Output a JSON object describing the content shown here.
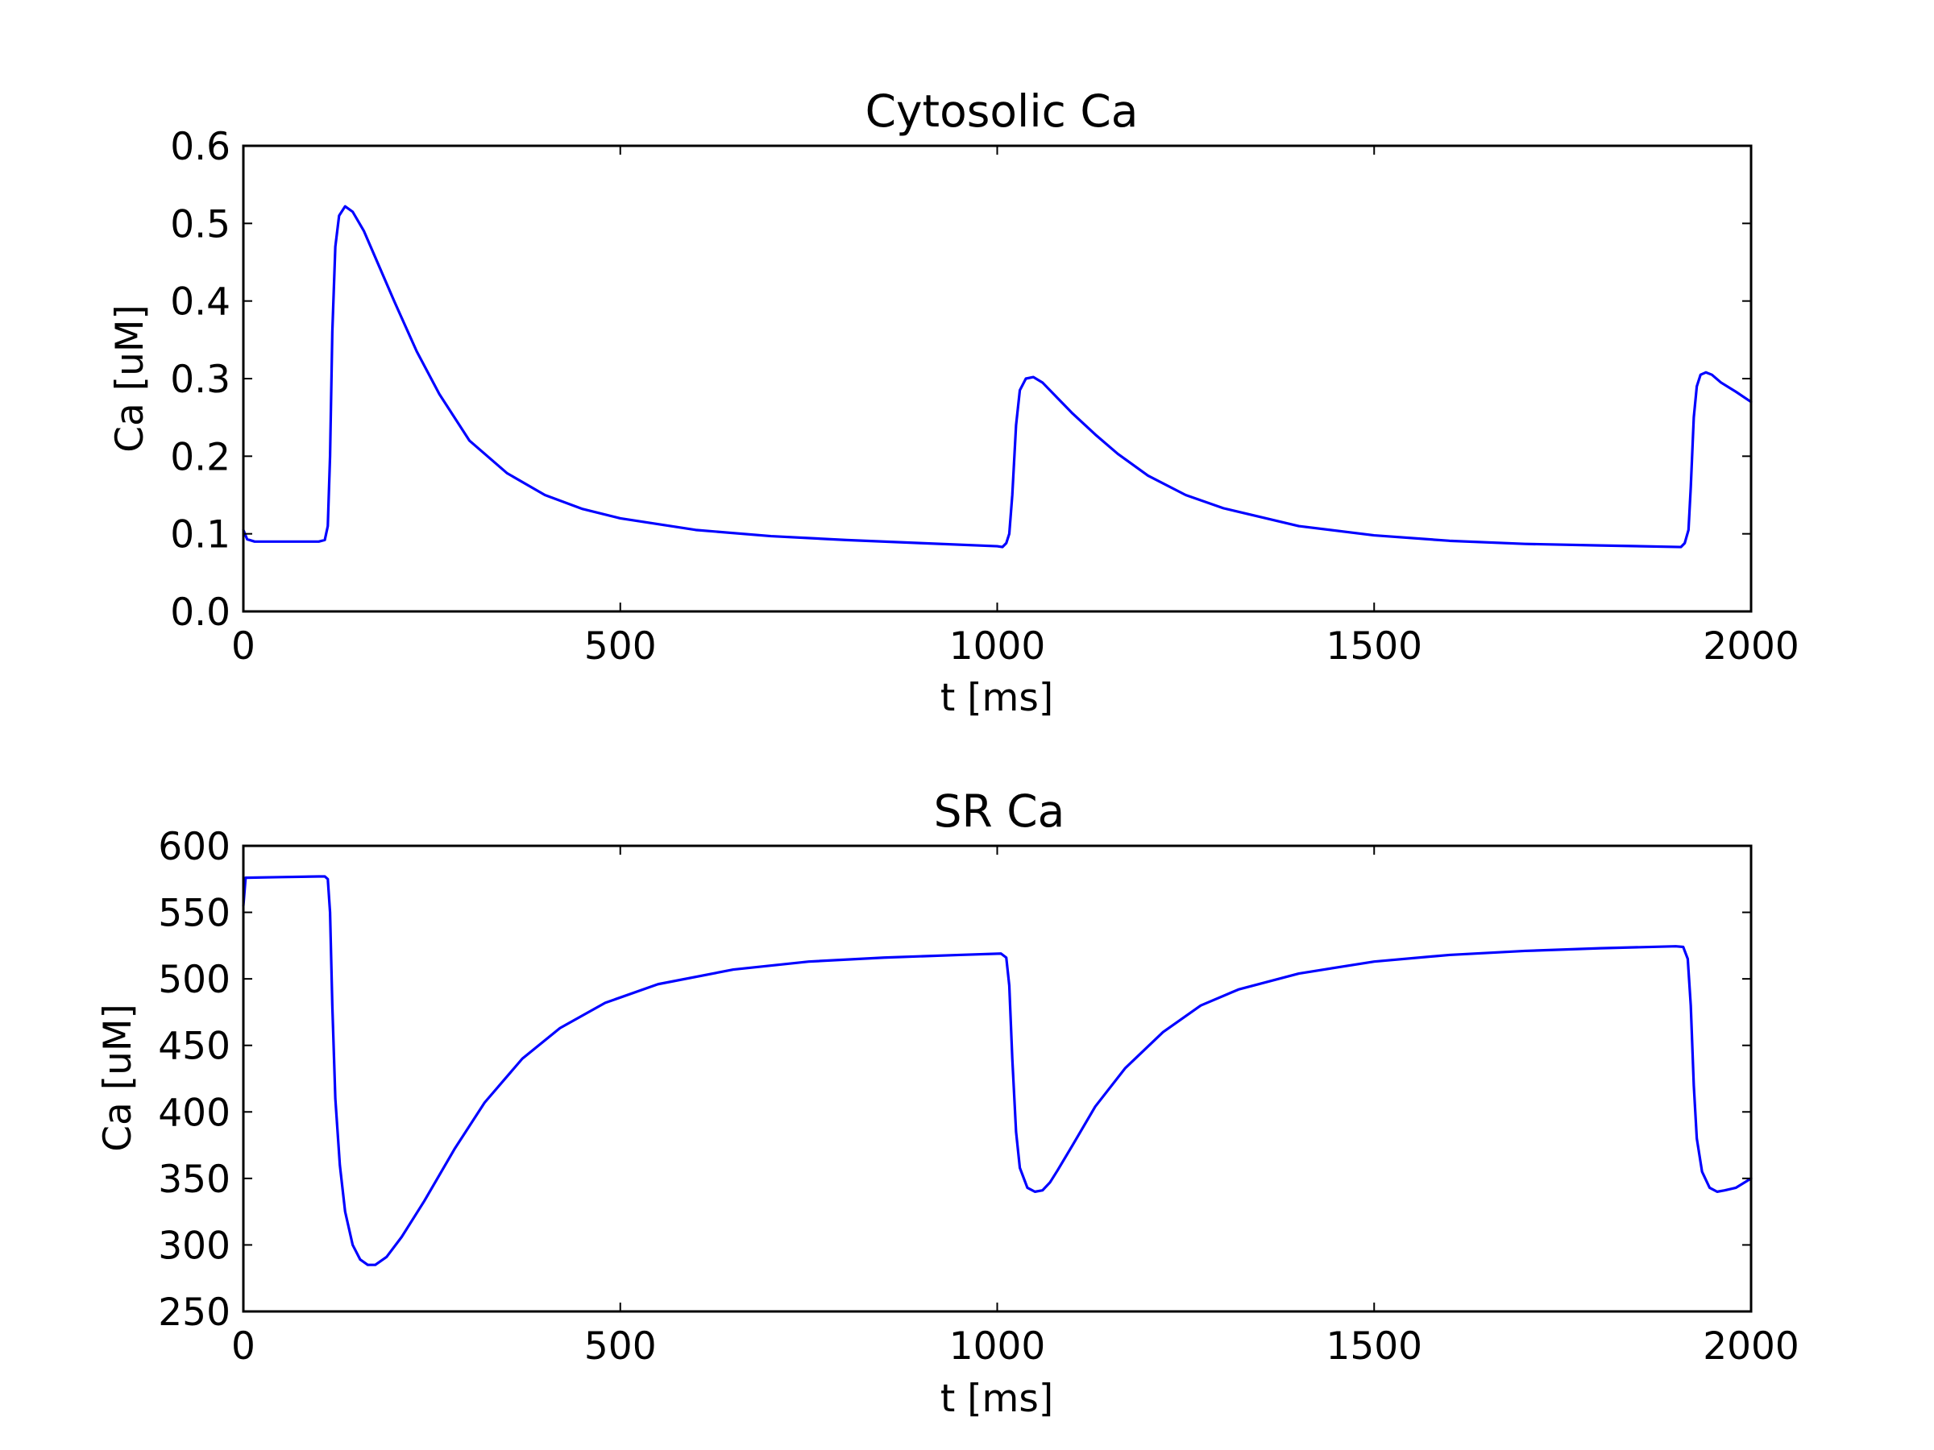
{
  "chart_data": [
    {
      "type": "line",
      "title": "Cytosolic Ca",
      "xlabel": "t [ms]",
      "ylabel": "Ca [uM]",
      "xlim": [
        0,
        2000
      ],
      "ylim": [
        0.0,
        0.6
      ],
      "xticks": [
        0,
        500,
        1000,
        1500,
        2000
      ],
      "xtick_labels": [
        "0",
        "500",
        "1000",
        "1500",
        "2000"
      ],
      "yticks": [
        0.0,
        0.1,
        0.2,
        0.3,
        0.4,
        0.5,
        0.6
      ],
      "ytick_labels": [
        "0.0",
        "0.1",
        "0.2",
        "0.3",
        "0.4",
        "0.5",
        "0.6"
      ],
      "grid": false,
      "series": [
        {
          "color": "#0000ff",
          "x": [
            0,
            5,
            15,
            40,
            100,
            108,
            112,
            115,
            118,
            122,
            127,
            135,
            145,
            160,
            180,
            200,
            230,
            260,
            300,
            350,
            400,
            450,
            500,
            600,
            700,
            800,
            900,
            1000,
            1007,
            1012,
            1016,
            1020,
            1025,
            1030,
            1038,
            1048,
            1060,
            1080,
            1100,
            1130,
            1160,
            1200,
            1250,
            1300,
            1400,
            1500,
            1600,
            1700,
            1800,
            1907,
            1912,
            1917,
            1920,
            1924,
            1928,
            1933,
            1940,
            1948,
            1960,
            1980,
            2000
          ],
          "y": [
            0.105,
            0.093,
            0.09,
            0.09,
            0.09,
            0.092,
            0.11,
            0.2,
            0.36,
            0.47,
            0.51,
            0.522,
            0.515,
            0.49,
            0.445,
            0.4,
            0.335,
            0.28,
            0.22,
            0.178,
            0.15,
            0.132,
            0.12,
            0.105,
            0.097,
            0.092,
            0.088,
            0.084,
            0.083,
            0.088,
            0.1,
            0.15,
            0.24,
            0.285,
            0.3,
            0.302,
            0.295,
            0.275,
            0.255,
            0.228,
            0.203,
            0.175,
            0.15,
            0.133,
            0.11,
            0.098,
            0.091,
            0.087,
            0.085,
            0.083,
            0.088,
            0.105,
            0.16,
            0.25,
            0.29,
            0.305,
            0.308,
            0.305,
            0.295,
            0.283,
            0.27
          ]
        }
      ]
    },
    {
      "type": "line",
      "title": "SR Ca",
      "xlabel": "t [ms]",
      "ylabel": "Ca [uM]",
      "xlim": [
        0,
        2000
      ],
      "ylim": [
        250,
        600
      ],
      "xticks": [
        0,
        500,
        1000,
        1500,
        2000
      ],
      "xtick_labels": [
        "0",
        "500",
        "1000",
        "1500",
        "2000"
      ],
      "yticks": [
        250,
        300,
        350,
        400,
        450,
        500,
        550,
        600
      ],
      "ytick_labels": [
        "250",
        "300",
        "350",
        "400",
        "450",
        "500",
        "550",
        "600"
      ],
      "grid": false,
      "series": [
        {
          "color": "#0000ff",
          "x": [
            0,
            3,
            50,
            100,
            108,
            112,
            115,
            118,
            122,
            128,
            135,
            145,
            155,
            165,
            175,
            190,
            210,
            240,
            280,
            320,
            370,
            420,
            480,
            550,
            650,
            750,
            850,
            950,
            1005,
            1012,
            1016,
            1020,
            1025,
            1030,
            1040,
            1050,
            1060,
            1070,
            1080,
            1100,
            1130,
            1170,
            1220,
            1270,
            1320,
            1400,
            1500,
            1600,
            1700,
            1800,
            1900,
            1910,
            1916,
            1920,
            1924,
            1928,
            1935,
            1945,
            1955,
            1965,
            1980,
            2000
          ],
          "y": [
            555,
            576,
            576.5,
            577,
            577,
            575,
            550,
            480,
            410,
            360,
            325,
            300,
            289,
            285,
            285,
            291,
            306,
            333,
            372,
            407,
            440,
            463,
            482,
            496,
            507,
            513,
            516,
            518,
            519,
            516,
            495,
            440,
            385,
            358,
            343,
            340,
            341,
            347,
            356,
            375,
            404,
            433,
            460,
            480,
            492,
            504,
            513,
            518,
            521,
            523,
            524.5,
            524,
            515,
            480,
            420,
            380,
            355,
            343,
            340,
            341,
            343,
            350
          ]
        }
      ]
    }
  ]
}
